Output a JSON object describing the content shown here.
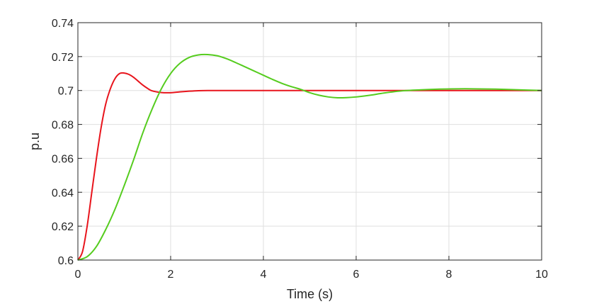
{
  "chart_data": {
    "type": "line",
    "xlabel": "Time (s)",
    "ylabel": "p.u",
    "xlim": [
      0,
      10
    ],
    "ylim": [
      0.6,
      0.74
    ],
    "xticks": [
      "0",
      "2",
      "4",
      "6",
      "8",
      "10"
    ],
    "yticks": [
      "0.6",
      "0.62",
      "0.64",
      "0.66",
      "0.68",
      "0.7",
      "0.72",
      "0.74"
    ],
    "grid": true,
    "legend": "none",
    "series": [
      {
        "color": "#e8141c",
        "x": [
          0,
          0.1,
          0.2,
          0.3,
          0.4,
          0.5,
          0.6,
          0.7,
          0.8,
          0.9,
          1.0,
          1.1,
          1.2,
          1.3,
          1.4,
          1.5,
          1.6,
          1.8,
          2.0,
          2.2,
          2.4,
          2.6,
          2.8,
          3.0,
          3.5,
          4.0,
          5.0,
          6.0,
          7.0,
          8.0,
          9.0,
          10.0
        ],
        "y": [
          0.6,
          0.605,
          0.62,
          0.64,
          0.66,
          0.678,
          0.692,
          0.701,
          0.707,
          0.71,
          0.7103,
          0.7095,
          0.7078,
          0.7055,
          0.7032,
          0.7013,
          0.6998,
          0.6988,
          0.6987,
          0.6992,
          0.6996,
          0.6999,
          0.7,
          0.7,
          0.7,
          0.7,
          0.7,
          0.7,
          0.7,
          0.7,
          0.7,
          0.7
        ]
      },
      {
        "color": "#55cc1e",
        "x": [
          0,
          0.2,
          0.4,
          0.6,
          0.8,
          1.0,
          1.2,
          1.4,
          1.6,
          1.8,
          2.0,
          2.2,
          2.4,
          2.6,
          2.8,
          3.0,
          3.2,
          3.4,
          3.6,
          3.8,
          4.0,
          4.2,
          4.4,
          4.6,
          4.8,
          5.0,
          5.2,
          5.4,
          5.6,
          5.8,
          6.0,
          6.3,
          6.6,
          7.0,
          7.4,
          7.8,
          8.2,
          8.5,
          9.0,
          9.5,
          10.0
        ],
        "y": [
          0.6,
          0.602,
          0.608,
          0.618,
          0.63,
          0.644,
          0.659,
          0.675,
          0.689,
          0.701,
          0.71,
          0.716,
          0.7195,
          0.721,
          0.7212,
          0.7205,
          0.7188,
          0.7165,
          0.714,
          0.7115,
          0.709,
          0.7065,
          0.7042,
          0.7023,
          0.7007,
          0.6987,
          0.6972,
          0.6962,
          0.6957,
          0.6958,
          0.6962,
          0.6972,
          0.6985,
          0.6998,
          0.7004,
          0.7008,
          0.701,
          0.701,
          0.7008,
          0.7004,
          0.7
        ]
      }
    ]
  }
}
